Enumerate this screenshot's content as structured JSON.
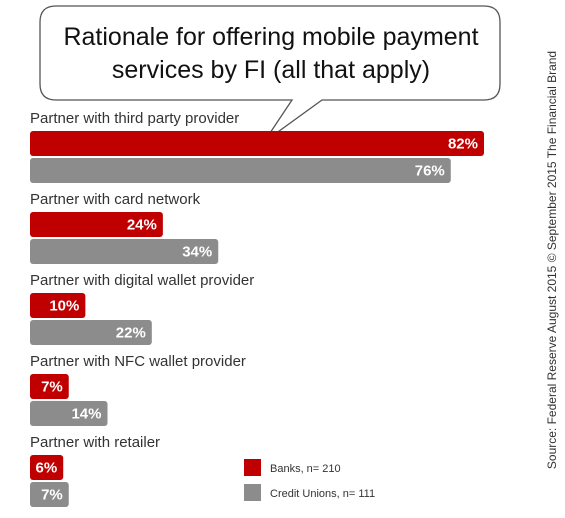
{
  "chart_data": {
    "type": "bar",
    "orientation": "horizontal",
    "title_lines": [
      "Rationale for offering mobile payment",
      "services by FI (all that apply)"
    ],
    "categories": [
      "Partner with third party provider",
      "Partner with card network",
      "Partner with digital wallet provider",
      "Partner with NFC wallet provider",
      "Partner with retailer"
    ],
    "series": [
      {
        "name": "Banks, n= 210",
        "color": "#c00000",
        "values": [
          82,
          24,
          10,
          7,
          6
        ]
      },
      {
        "name": "Credit Unions, n= 111",
        "color": "#8c8c8c",
        "values": [
          76,
          34,
          22,
          14,
          7
        ]
      }
    ],
    "value_suffix": "%",
    "xlim": [
      0,
      82
    ],
    "legend_position": "bottom-right",
    "grid": false,
    "source": "Source: Federal Reserve August 2015 © September  2015 The Financial Brand"
  }
}
